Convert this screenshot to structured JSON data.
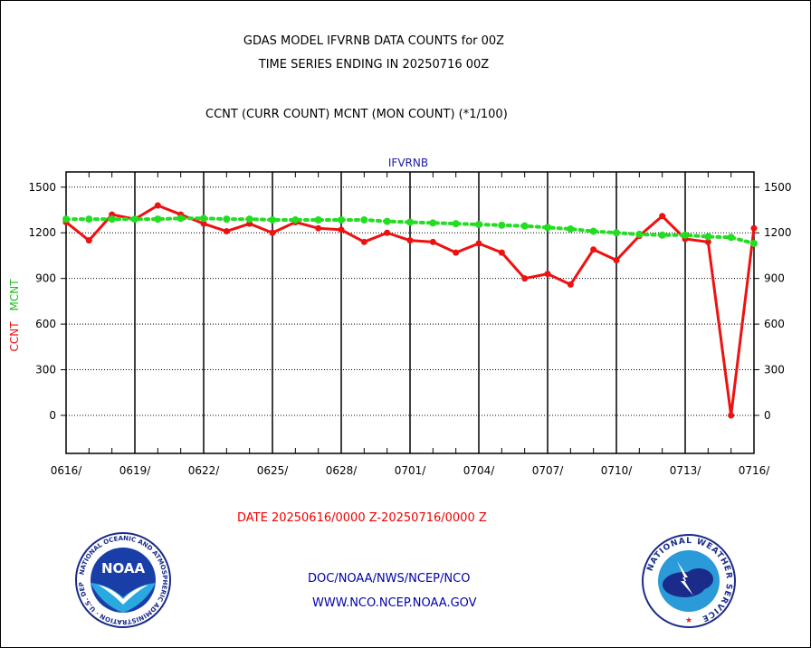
{
  "header": {
    "title_line1": "GDAS MODEL IFVRNB DATA COUNTS for 00Z",
    "title_line2": "TIME SERIES ENDING IN 20250716 00Z",
    "subtitle": "CCNT (CURR COUNT) MCNT (MON COUNT) (*1/100)"
  },
  "footer": {
    "date_range": "DATE 20250616/0000 Z-20250716/0000 Z",
    "link_doc": "DOC/NOAA/NWS/NCEP/NCO",
    "link_www": "WWW.NCO.NCEP.NOAA.GOV"
  },
  "logos": {
    "noaa_text": "NOAA",
    "noaa_ring": "NATIONAL OCEANIC AND ATMOSPHERIC ADMINISTRATION · U.S. DEPARTMENT OF COMMERCE",
    "nws_ring": "NATIONAL WEATHER SERVICE"
  },
  "colors": {
    "ccnt": "#ee1111",
    "mcnt": "#22dd22",
    "text_blue": "#1a1aaa"
  },
  "chart_data": {
    "type": "line",
    "title": "IFVRNB",
    "ylabel_series": [
      "CCNT",
      "MCNT"
    ],
    "ylim": [
      -250,
      1600
    ],
    "yticks": [
      0,
      300,
      600,
      900,
      1200,
      1500
    ],
    "xlim": [
      0,
      30
    ],
    "xtick_labels": [
      "0616/",
      "0619/",
      "0622/",
      "0625/",
      "0628/",
      "0701/",
      "0704/",
      "0707/",
      "0710/",
      "0713/",
      "0716/"
    ],
    "xtick_positions": [
      0,
      3,
      6,
      9,
      12,
      15,
      18,
      21,
      24,
      27,
      30
    ],
    "grid": true,
    "series": [
      {
        "name": "CCNT",
        "color": "#ee1111",
        "x": [
          0,
          1,
          2,
          3,
          4,
          5,
          6,
          7,
          8,
          9,
          10,
          11,
          12,
          13,
          14,
          15,
          16,
          17,
          18,
          19,
          20,
          21,
          22,
          23,
          24,
          25,
          26,
          27,
          28,
          29,
          30
        ],
        "values": [
          1270,
          1150,
          1320,
          1290,
          1380,
          1320,
          1260,
          1210,
          1260,
          1200,
          1270,
          1230,
          1220,
          1140,
          1200,
          1150,
          1140,
          1070,
          1130,
          1070,
          900,
          930,
          860,
          1090,
          1020,
          1180,
          1310,
          1160,
          1140,
          0,
          1230
        ]
      },
      {
        "name": "MCNT",
        "color": "#22dd22",
        "x": [
          0,
          1,
          2,
          3,
          4,
          5,
          6,
          7,
          8,
          9,
          10,
          11,
          12,
          13,
          14,
          15,
          16,
          17,
          18,
          19,
          20,
          21,
          22,
          23,
          24,
          25,
          26,
          27,
          28,
          29,
          30
        ],
        "values": [
          1290,
          1290,
          1290,
          1290,
          1290,
          1295,
          1295,
          1290,
          1290,
          1285,
          1285,
          1285,
          1285,
          1285,
          1275,
          1270,
          1265,
          1260,
          1255,
          1250,
          1245,
          1235,
          1225,
          1210,
          1200,
          1190,
          1185,
          1185,
          1175,
          1170,
          1130
        ]
      }
    ]
  }
}
